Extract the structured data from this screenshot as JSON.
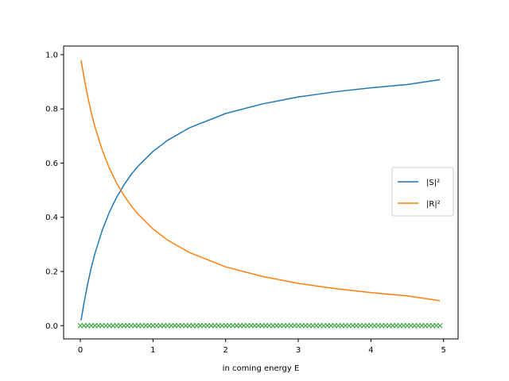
{
  "chart_data": {
    "type": "line",
    "title": "",
    "xlabel": "in coming energy E",
    "ylabel": "",
    "xlim": [
      -0.23,
      5.2
    ],
    "ylim": [
      -0.049,
      1.032
    ],
    "x_ticks": [
      0,
      1,
      2,
      3,
      4,
      5
    ],
    "x_tick_labels": [
      "0",
      "1",
      "2",
      "3",
      "4",
      "5"
    ],
    "y_ticks": [
      0.0,
      0.2,
      0.4,
      0.6,
      0.8,
      1.0
    ],
    "y_tick_labels": [
      "0.0",
      "0.2",
      "0.4",
      "0.6",
      "0.8",
      "1.0"
    ],
    "grid": false,
    "legend_position": "center-right",
    "series": [
      {
        "name": "|S|²",
        "color": "#1f77b4",
        "style": "line",
        "x": [
          0.01,
          0.05,
          0.1,
          0.15,
          0.2,
          0.3,
          0.4,
          0.5,
          0.6,
          0.7,
          0.8,
          1.0,
          1.2,
          1.5,
          2.0,
          2.5,
          3.0,
          3.5,
          4.0,
          4.5,
          4.95
        ],
        "y": [
          0.02,
          0.083,
          0.153,
          0.213,
          0.265,
          0.351,
          0.419,
          0.474,
          0.519,
          0.558,
          0.59,
          0.643,
          0.684,
          0.73,
          0.783,
          0.818,
          0.844,
          0.863,
          0.878,
          0.89,
          0.908
        ]
      },
      {
        "name": "|R|²",
        "color": "#ff7f0e",
        "style": "line",
        "x": [
          0.01,
          0.05,
          0.1,
          0.15,
          0.2,
          0.3,
          0.4,
          0.5,
          0.6,
          0.7,
          0.8,
          1.0,
          1.2,
          1.5,
          2.0,
          2.5,
          3.0,
          3.5,
          4.0,
          4.5,
          4.95
        ],
        "y": [
          0.98,
          0.917,
          0.847,
          0.787,
          0.735,
          0.649,
          0.581,
          0.526,
          0.481,
          0.442,
          0.41,
          0.357,
          0.316,
          0.27,
          0.217,
          0.182,
          0.156,
          0.137,
          0.122,
          0.11,
          0.092
        ]
      },
      {
        "name": "",
        "color": "#2ca02c",
        "style": "marker-x",
        "x_start": 0.0,
        "x_end": 4.95,
        "x_step": 0.05,
        "y": 0.0
      }
    ]
  }
}
